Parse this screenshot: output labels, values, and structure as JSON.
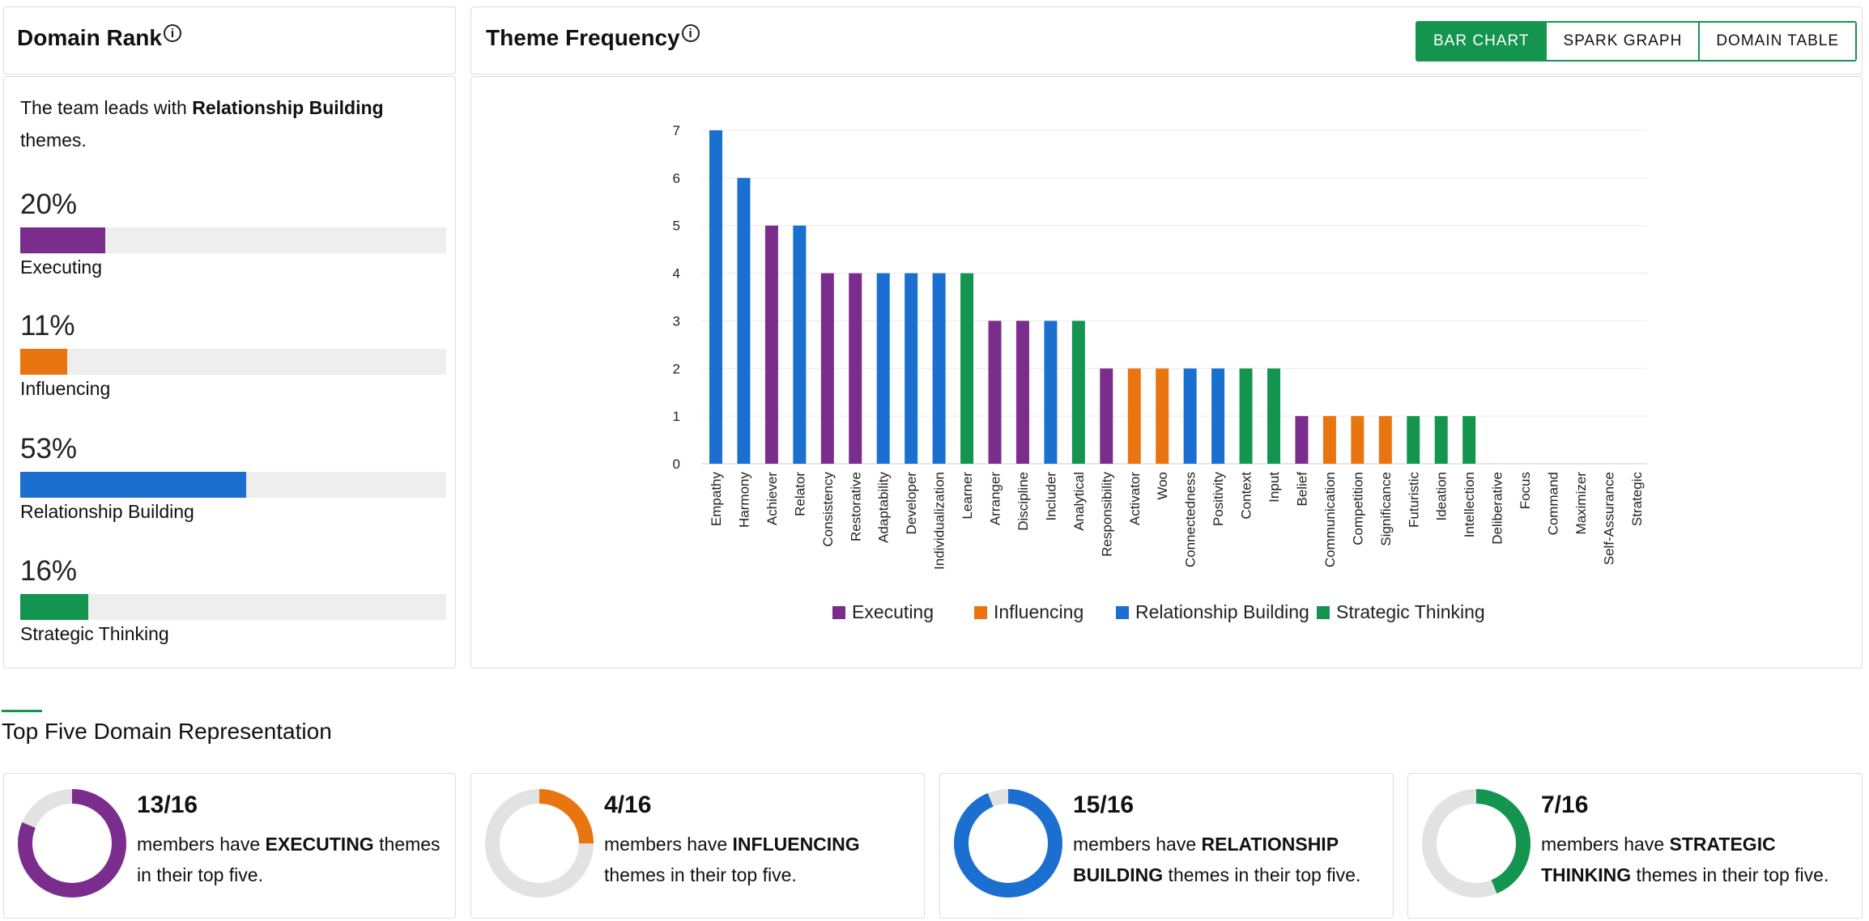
{
  "domain_rank": {
    "title": "Domain Rank",
    "info_icon": "ⓘ",
    "lead_prefix": "The team leads with ",
    "lead_bold": "Relationship Building",
    "lead_suffix": " themes.",
    "items": [
      {
        "pct_label": "20%",
        "value": 20,
        "name": "Executing",
        "color": "#7b2d8e"
      },
      {
        "pct_label": "11%",
        "value": 11,
        "name": "Influencing",
        "color": "#e8750f"
      },
      {
        "pct_label": "53%",
        "value": 53,
        "name": "Relationship Building",
        "color": "#1b6fd1"
      },
      {
        "pct_label": "16%",
        "value": 16,
        "name": "Strategic Thinking",
        "color": "#14954f"
      }
    ]
  },
  "theme_frequency": {
    "title": "Theme Frequency",
    "info_icon": "ⓘ",
    "tabs": [
      {
        "label": "BAR CHART",
        "active": true
      },
      {
        "label": "SPARK GRAPH",
        "active": false
      },
      {
        "label": "DOMAIN TABLE",
        "active": false
      }
    ]
  },
  "colors": {
    "Executing": "#7b2d8e",
    "Influencing": "#e8750f",
    "Relationship Building": "#1b6fd1",
    "Strategic Thinking": "#14954f",
    "accent": "#14954f"
  },
  "chart_data": {
    "type": "bar",
    "ylim": [
      0,
      7
    ],
    "yticks": [
      "0",
      "1",
      "2",
      "3",
      "4",
      "5",
      "6",
      "7"
    ],
    "categories": [
      "Empathy",
      "Harmony",
      "Achiever",
      "Relator",
      "Consistency",
      "Restorative",
      "Adaptability",
      "Developer",
      "Individualization",
      "Learner",
      "Arranger",
      "Discipline",
      "Includer",
      "Analytical",
      "Responsibility",
      "Activator",
      "Woo",
      "Connectedness",
      "Positivity",
      "Context",
      "Input",
      "Belief",
      "Communication",
      "Competition",
      "Significance",
      "Futuristic",
      "Ideation",
      "Intellection",
      "Deliberative",
      "Focus",
      "Command",
      "Maximizer",
      "Self-Assurance",
      "Strategic"
    ],
    "values": [
      7,
      6,
      5,
      5,
      4,
      4,
      4,
      4,
      4,
      4,
      3,
      3,
      3,
      3,
      2,
      2,
      2,
      2,
      2,
      2,
      2,
      1,
      1,
      1,
      1,
      1,
      1,
      1,
      0,
      0,
      0,
      0,
      0,
      0
    ],
    "domains": [
      "Relationship Building",
      "Relationship Building",
      "Executing",
      "Relationship Building",
      "Executing",
      "Executing",
      "Relationship Building",
      "Relationship Building",
      "Relationship Building",
      "Strategic Thinking",
      "Executing",
      "Executing",
      "Relationship Building",
      "Strategic Thinking",
      "Executing",
      "Influencing",
      "Influencing",
      "Relationship Building",
      "Relationship Building",
      "Strategic Thinking",
      "Strategic Thinking",
      "Executing",
      "Influencing",
      "Influencing",
      "Influencing",
      "Strategic Thinking",
      "Strategic Thinking",
      "Strategic Thinking",
      "Executing",
      "Executing",
      "Influencing",
      "Influencing",
      "Influencing",
      "Strategic Thinking"
    ],
    "legend": [
      "Executing",
      "Influencing",
      "Relationship Building",
      "Strategic Thinking"
    ],
    "grid": true,
    "legend_position": "bottom"
  },
  "top_five": {
    "title": "Top Five Domain Representation",
    "cards": [
      {
        "count": "13/16",
        "fraction": 0.8125,
        "pre": "members have ",
        "bold": "EXECUTING",
        "post": " themes in their top five.",
        "color": "#7b2d8e"
      },
      {
        "count": "4/16",
        "fraction": 0.25,
        "pre": "members have ",
        "bold": "INFLUENCING",
        "post": " themes in their top five.",
        "color": "#e8750f"
      },
      {
        "count": "15/16",
        "fraction": 0.9375,
        "pre": "members have ",
        "bold": "RELATIONSHIP BUILDING",
        "post": " themes in their top five.",
        "color": "#1b6fd1"
      },
      {
        "count": "7/16",
        "fraction": 0.4375,
        "pre": "members have ",
        "bold": "STRATEGIC THINKING",
        "post": " themes in their top five.",
        "color": "#14954f"
      }
    ]
  }
}
